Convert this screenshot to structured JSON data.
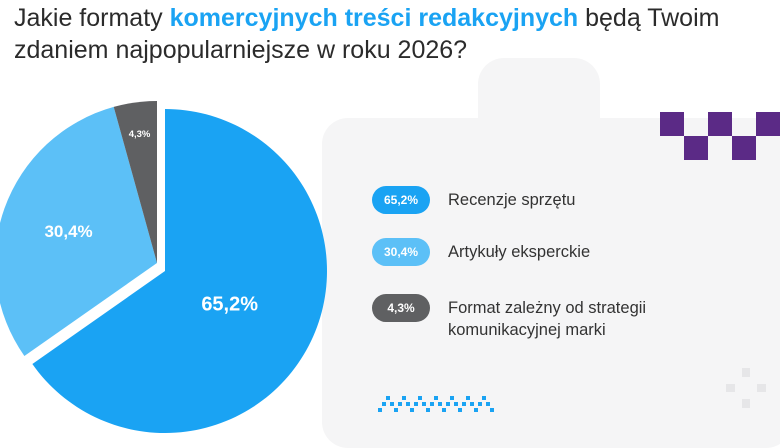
{
  "title": {
    "part1": "Jakie formaty ",
    "highlight": "komercyjnych treści redakcyjnych",
    "part2": " będą Twoim zdaniem najpopularniejsze w roku 2026?"
  },
  "colors": {
    "accent": "#1aa3f3",
    "light_blue": "#5cc0f7",
    "gray": "#5f6062",
    "purple": "#5b2a86"
  },
  "chart_data": {
    "type": "pie",
    "slices": [
      {
        "label": "Recenzje sprzętu",
        "value": 65.2,
        "display": "65,2%",
        "color": "#1aa3f3"
      },
      {
        "label": "Artykuły eksperckie",
        "value": 30.4,
        "display": "30,4%",
        "color": "#5cc0f7"
      },
      {
        "label": "Format zależny od strategii komunikacyjnej marki",
        "value": 4.3,
        "display": "4,3%",
        "color": "#5f6062"
      }
    ],
    "legend_position": "right"
  },
  "legend": [
    {
      "pill": "65,2%",
      "label": "Recenzje sprzętu",
      "color": "#1aa3f3"
    },
    {
      "pill": "30,4%",
      "label": "Artykuły eksperckie",
      "color": "#5cc0f7"
    },
    {
      "pill": "4,3%",
      "label": "Format zależny od strategii komunikacyjnej marki",
      "color": "#5f6062"
    }
  ]
}
